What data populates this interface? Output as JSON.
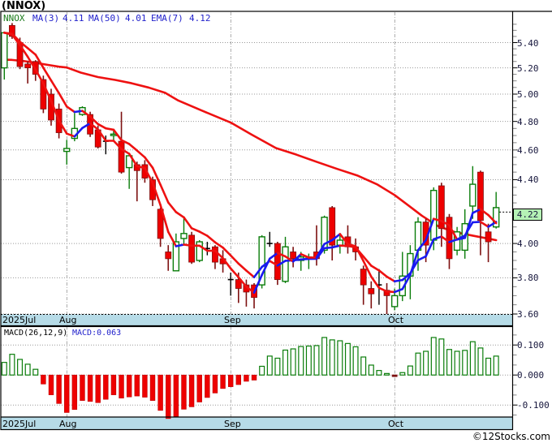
{
  "title": "(NNOX)",
  "legend": {
    "symbol": {
      "label": "NNOX",
      "color": "#1a7a1a"
    },
    "items": [
      {
        "label": "MA(3)",
        "value": "4.11",
        "color": "#2222cc"
      },
      {
        "label": "MA(50)",
        "value": "4.01",
        "color": "#2222cc"
      },
      {
        "label": "EMA(7)",
        "value": "4.12",
        "color": "#2222cc"
      }
    ]
  },
  "last_price_badge": "4.22",
  "price_axis": {
    "labels": [
      {
        "text": "5.40",
        "value": 5.4
      },
      {
        "text": "5.20",
        "value": 5.2
      },
      {
        "text": "5.00",
        "value": 5.0
      },
      {
        "text": "4.80",
        "value": 4.8
      },
      {
        "text": "4.60",
        "value": 4.6
      },
      {
        "text": "4.40",
        "value": 4.4
      },
      {
        "text": "4.00",
        "value": 4.0
      },
      {
        "text": "3.80",
        "value": 3.8
      },
      {
        "text": "3.60",
        "value": 3.6
      }
    ]
  },
  "macd_axis": {
    "labels": [
      {
        "text": "0.100",
        "value": 0.1
      },
      {
        "text": "0.000",
        "value": 0.0
      },
      {
        "text": "-0.100",
        "value": -0.1
      }
    ]
  },
  "months_top": [
    {
      "label": "2025Jul"
    },
    {
      "label": "Aug"
    },
    {
      "label": "Sep"
    },
    {
      "label": "Oct"
    }
  ],
  "months_bottom": [
    {
      "label": "2025Jul"
    },
    {
      "label": "Aug"
    },
    {
      "label": "Sep"
    },
    {
      "label": "Oct"
    }
  ],
  "macd_panel": {
    "title": "MACD(26,12,9)",
    "value_label": "MACD:0.063",
    "value_color": "#2222cc"
  },
  "copyright": "©12Stocks.com",
  "colors": {
    "up": "#0a7d0a",
    "down": "#ee0000",
    "down_wick": "#7d1010",
    "doji": "#000000",
    "line_up": "#1a1af0",
    "line_down": "#ee1111",
    "ma50": "#ee1111",
    "grid": "#999999",
    "band": "#b6dbe7",
    "border": "#000000",
    "badge_bg": "#b5f2b5",
    "macd_neg_small": "#7d1010"
  },
  "chart_data": {
    "type": "candlestick_with_macd",
    "timeframe": {
      "start_label": "2025Jul",
      "month_boundaries_day_index": [
        8,
        29,
        50
      ]
    },
    "price_scale": {
      "type": "log",
      "top_price": 5.658,
      "bottom_price": 3.6
    },
    "candles": [
      {
        "o": 5.2,
        "h": 5.49,
        "l": 5.11,
        "c": 5.48,
        "k": "g"
      },
      {
        "o": 5.54,
        "h": 5.56,
        "l": 5.43,
        "c": 5.45,
        "k": "r"
      },
      {
        "o": 5.4,
        "h": 5.44,
        "l": 5.19,
        "c": 5.21,
        "k": "r"
      },
      {
        "o": 5.23,
        "h": 5.25,
        "l": 5.08,
        "c": 5.2,
        "k": "r"
      },
      {
        "o": 5.25,
        "h": 5.26,
        "l": 5.1,
        "c": 5.15,
        "k": "r"
      },
      {
        "o": 5.11,
        "h": 5.14,
        "l": 4.86,
        "c": 4.89,
        "k": "r"
      },
      {
        "o": 5.0,
        "h": 5.04,
        "l": 4.77,
        "c": 4.81,
        "k": "r"
      },
      {
        "o": 4.89,
        "h": 4.93,
        "l": 4.68,
        "c": 4.72,
        "k": "r"
      },
      {
        "o": 4.59,
        "h": 4.67,
        "l": 4.5,
        "c": 4.61,
        "k": "g"
      },
      {
        "o": 4.68,
        "h": 4.86,
        "l": 4.66,
        "c": 4.75,
        "k": "g"
      },
      {
        "o": 4.85,
        "h": 4.91,
        "l": 4.84,
        "c": 4.9,
        "k": "g"
      },
      {
        "o": 4.85,
        "h": 4.87,
        "l": 4.69,
        "c": 4.71,
        "k": "r"
      },
      {
        "o": 4.74,
        "h": 4.77,
        "l": 4.61,
        "c": 4.62,
        "k": "r"
      },
      {
        "o": 4.66,
        "h": 4.7,
        "l": 4.57,
        "c": 4.66,
        "k": "d"
      },
      {
        "o": 4.7,
        "h": 4.74,
        "l": 4.66,
        "c": 4.71,
        "k": "g"
      },
      {
        "o": 4.66,
        "h": 4.87,
        "l": 4.44,
        "c": 4.45,
        "k": "r"
      },
      {
        "o": 4.48,
        "h": 4.58,
        "l": 4.34,
        "c": 4.56,
        "k": "g"
      },
      {
        "o": 4.5,
        "h": 4.52,
        "l": 4.26,
        "c": 4.46,
        "k": "r"
      },
      {
        "o": 4.5,
        "h": 4.53,
        "l": 4.38,
        "c": 4.41,
        "k": "r"
      },
      {
        "o": 4.4,
        "h": 4.42,
        "l": 4.23,
        "c": 4.27,
        "k": "r"
      },
      {
        "o": 4.21,
        "h": 4.22,
        "l": 3.98,
        "c": 4.03,
        "k": "r"
      },
      {
        "o": 3.95,
        "h": 3.99,
        "l": 3.84,
        "c": 3.91,
        "k": "r"
      },
      {
        "o": 3.84,
        "h": 4.06,
        "l": 3.84,
        "c": 4.01,
        "k": "g"
      },
      {
        "o": 4.03,
        "h": 4.16,
        "l": 3.99,
        "c": 4.06,
        "k": "g"
      },
      {
        "o": 4.05,
        "h": 4.07,
        "l": 3.88,
        "c": 3.89,
        "k": "r"
      },
      {
        "o": 3.9,
        "h": 4.02,
        "l": 3.89,
        "c": 4.01,
        "k": "g"
      },
      {
        "o": 3.97,
        "h": 4.01,
        "l": 3.93,
        "c": 3.97,
        "k": "d"
      },
      {
        "o": 3.98,
        "h": 3.99,
        "l": 3.85,
        "c": 3.89,
        "k": "r"
      },
      {
        "o": 3.91,
        "h": 3.96,
        "l": 3.83,
        "c": 3.88,
        "k": "r"
      },
      {
        "o": 3.79,
        "h": 3.83,
        "l": 3.7,
        "c": 3.79,
        "k": "d"
      },
      {
        "o": 3.79,
        "h": 3.83,
        "l": 3.66,
        "c": 3.74,
        "k": "r"
      },
      {
        "o": 3.76,
        "h": 3.79,
        "l": 3.64,
        "c": 3.72,
        "k": "r"
      },
      {
        "o": 3.76,
        "h": 3.77,
        "l": 3.63,
        "c": 3.69,
        "k": "r"
      },
      {
        "o": 3.76,
        "h": 4.05,
        "l": 3.74,
        "c": 4.04,
        "k": "g"
      },
      {
        "o": 4.0,
        "h": 4.07,
        "l": 3.98,
        "c": 4.0,
        "k": "d"
      },
      {
        "o": 4.0,
        "h": 4.01,
        "l": 3.76,
        "c": 3.79,
        "k": "r"
      },
      {
        "o": 3.78,
        "h": 4.04,
        "l": 3.77,
        "c": 3.98,
        "k": "g"
      },
      {
        "o": 3.95,
        "h": 3.98,
        "l": 3.86,
        "c": 3.91,
        "k": "r"
      },
      {
        "o": 3.9,
        "h": 3.95,
        "l": 3.84,
        "c": 3.92,
        "k": "g"
      },
      {
        "o": 3.91,
        "h": 3.94,
        "l": 3.85,
        "c": 3.92,
        "k": "g"
      },
      {
        "o": 3.95,
        "h": 4.11,
        "l": 3.87,
        "c": 3.91,
        "k": "r"
      },
      {
        "o": 3.96,
        "h": 4.17,
        "l": 3.94,
        "c": 4.16,
        "k": "g"
      },
      {
        "o": 4.22,
        "h": 4.23,
        "l": 3.9,
        "c": 3.99,
        "k": "r"
      },
      {
        "o": 3.99,
        "h": 4.06,
        "l": 3.94,
        "c": 4.02,
        "k": "g"
      },
      {
        "o": 4.04,
        "h": 4.11,
        "l": 3.94,
        "c": 3.98,
        "k": "r"
      },
      {
        "o": 3.98,
        "h": 4.03,
        "l": 3.9,
        "c": 3.95,
        "k": "r"
      },
      {
        "o": 3.85,
        "h": 3.87,
        "l": 3.65,
        "c": 3.76,
        "k": "r"
      },
      {
        "o": 3.74,
        "h": 3.78,
        "l": 3.63,
        "c": 3.71,
        "k": "r"
      },
      {
        "o": 3.76,
        "h": 3.85,
        "l": 3.65,
        "c": 3.76,
        "k": "d"
      },
      {
        "o": 3.73,
        "h": 3.77,
        "l": 3.6,
        "c": 3.7,
        "k": "r"
      },
      {
        "o": 3.64,
        "h": 3.74,
        "l": 3.62,
        "c": 3.7,
        "k": "g"
      },
      {
        "o": 3.7,
        "h": 3.95,
        "l": 3.67,
        "c": 3.81,
        "k": "g"
      },
      {
        "o": 3.81,
        "h": 3.99,
        "l": 3.68,
        "c": 3.94,
        "k": "g"
      },
      {
        "o": 3.96,
        "h": 4.16,
        "l": 3.84,
        "c": 4.13,
        "k": "g"
      },
      {
        "o": 4.13,
        "h": 4.15,
        "l": 3.89,
        "c": 3.99,
        "k": "r"
      },
      {
        "o": 4.02,
        "h": 4.35,
        "l": 3.96,
        "c": 4.33,
        "k": "g"
      },
      {
        "o": 4.36,
        "h": 4.38,
        "l": 3.98,
        "c": 4.09,
        "k": "r"
      },
      {
        "o": 4.16,
        "h": 4.18,
        "l": 3.85,
        "c": 3.91,
        "k": "r"
      },
      {
        "o": 3.96,
        "h": 4.1,
        "l": 3.93,
        "c": 4.07,
        "k": "g"
      },
      {
        "o": 3.96,
        "h": 4.21,
        "l": 3.91,
        "c": 4.12,
        "k": "g"
      },
      {
        "o": 4.23,
        "h": 4.49,
        "l": 4.15,
        "c": 4.37,
        "k": "g"
      },
      {
        "o": 4.45,
        "h": 4.46,
        "l": 3.93,
        "c": 4.14,
        "k": "r"
      },
      {
        "o": 4.07,
        "h": 4.12,
        "l": 3.89,
        "c": 4.01,
        "k": "r"
      },
      {
        "o": 4.1,
        "h": 4.32,
        "l": 4.09,
        "c": 4.22,
        "k": "g"
      }
    ],
    "overlays": {
      "ma3_window": 3,
      "ema7_alpha": 0.25,
      "ma50_trace": [
        [
          0,
          5.264
        ],
        [
          1.0,
          5.262
        ],
        [
          2.5,
          5.253
        ],
        [
          4.0,
          5.239
        ],
        [
          5.6,
          5.223
        ],
        [
          7.0,
          5.209
        ],
        [
          8.0,
          5.203
        ],
        [
          9.8,
          5.163
        ],
        [
          12.0,
          5.129
        ],
        [
          14.2,
          5.107
        ],
        [
          16.3,
          5.082
        ],
        [
          18.5,
          5.049
        ],
        [
          20.6,
          5.01
        ],
        [
          22.3,
          4.952
        ],
        [
          25.5,
          4.874
        ],
        [
          29.0,
          4.792
        ],
        [
          31.7,
          4.706
        ],
        [
          34.8,
          4.613
        ],
        [
          37.4,
          4.568
        ],
        [
          40.0,
          4.519
        ],
        [
          42.6,
          4.472
        ],
        [
          45.2,
          4.428
        ],
        [
          47.8,
          4.368
        ],
        [
          50.0,
          4.3
        ],
        [
          52.0,
          4.225
        ],
        [
          53.5,
          4.169
        ],
        [
          55.6,
          4.104
        ],
        [
          57.7,
          4.069
        ],
        [
          60.0,
          4.047
        ],
        [
          61.9,
          4.03
        ],
        [
          63.0,
          4.02
        ]
      ]
    },
    "macd_hist": [
      0.042,
      0.069,
      0.052,
      0.036,
      0.019,
      -0.03,
      -0.066,
      -0.095,
      -0.125,
      -0.115,
      -0.085,
      -0.088,
      -0.092,
      -0.081,
      -0.066,
      -0.077,
      -0.073,
      -0.07,
      -0.074,
      -0.085,
      -0.118,
      -0.145,
      -0.138,
      -0.114,
      -0.106,
      -0.09,
      -0.075,
      -0.06,
      -0.045,
      -0.039,
      -0.032,
      -0.021,
      -0.017,
      0.029,
      0.063,
      0.056,
      0.083,
      0.087,
      0.095,
      0.0965,
      0.098,
      0.125,
      0.117,
      0.114,
      0.105,
      0.094,
      0.06,
      0.033,
      0.015,
      0.005,
      -0.005,
      0.008,
      0.03,
      0.073,
      0.079,
      0.125,
      0.12,
      0.085,
      0.079,
      0.082,
      0.111,
      0.09,
      0.056,
      0.063
    ],
    "macd_ylim": [
      -0.155,
      0.16
    ]
  }
}
